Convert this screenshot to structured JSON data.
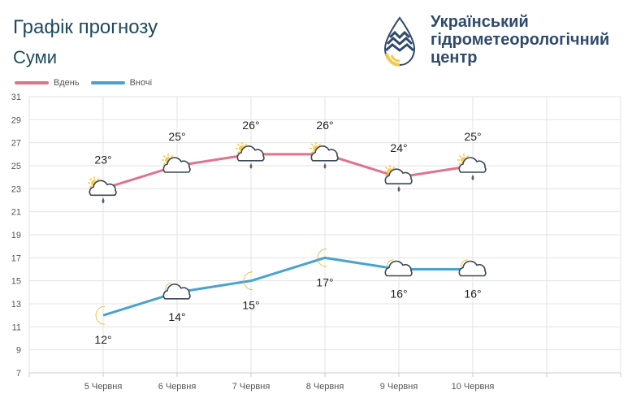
{
  "header": {
    "title": "Графік прогнозу",
    "city": "Суми"
  },
  "organization": {
    "name": "Український\nгідрометеорологічний\nцентр",
    "logo_icon": "droplet-logo-icon",
    "colors": {
      "primary": "#2f4a6b",
      "accent": "#f2c94c"
    }
  },
  "chart_data": {
    "type": "line",
    "categories": [
      "5 Червня",
      "6 Червня",
      "7 Червня",
      "8 Червня",
      "9 Червня",
      "10 Червня"
    ],
    "series": [
      {
        "name": "Вдень",
        "color": "#e0728c",
        "values": [
          23,
          25,
          26,
          26,
          24,
          25
        ],
        "labels": [
          "23°",
          "25°",
          "26°",
          "26°",
          "24°",
          "25°"
        ],
        "icons": [
          "sun-cloud-rain-icon",
          "sun-cloud-icon",
          "sun-cloud-rain-icon",
          "sun-cloud-rain-icon",
          "sun-cloud-rain-icon",
          "sun-cloud-rain-icon"
        ]
      },
      {
        "name": "Вночі",
        "color": "#4aa3cf",
        "values": [
          12,
          14,
          15,
          17,
          16,
          16
        ],
        "labels": [
          "12°",
          "14°",
          "15°",
          "17°",
          "16°",
          "16°"
        ],
        "icons": [
          "moon-icon",
          "moon-cloud-icon",
          "moon-icon",
          "moon-icon",
          "moon-cloud-icon",
          "moon-cloud-icon"
        ]
      }
    ],
    "yticks": [
      "7",
      "9",
      "11",
      "13",
      "15",
      "17",
      "19",
      "21",
      "23",
      "25",
      "27",
      "29",
      "31"
    ],
    "ylim": [
      7,
      31
    ],
    "legend": "top-left",
    "grid": true
  }
}
